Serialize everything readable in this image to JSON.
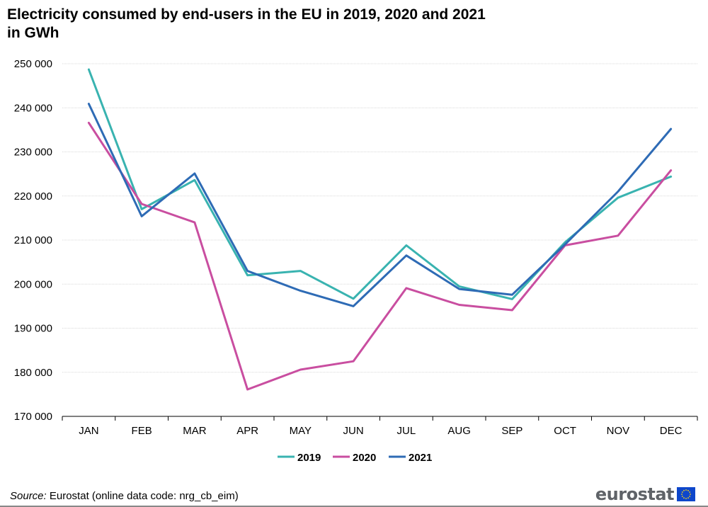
{
  "title_line1": "Electricity consumed by end-users in the EU in 2019, 2020 and 2021",
  "title_line2": "in GWh",
  "source_label": "Source:",
  "source_text": " Eurostat (online data code: nrg_cb_eim)",
  "logo_text": "eurostat",
  "chart_data": {
    "type": "line",
    "categories": [
      "JAN",
      "FEB",
      "MAR",
      "APR",
      "MAY",
      "JUN",
      "JUL",
      "AUG",
      "SEP",
      "OCT",
      "NOV",
      "DEC"
    ],
    "ylim": [
      170000,
      250000
    ],
    "yticks": [
      170000,
      180000,
      190000,
      200000,
      210000,
      220000,
      230000,
      240000,
      250000
    ],
    "ytick_labels": [
      "170 000",
      "180 000",
      "190 000",
      "200 000",
      "210 000",
      "220 000",
      "230 000",
      "240 000",
      "250 000"
    ],
    "grid": true,
    "legend": "bottom-center",
    "series": [
      {
        "name": "2019",
        "color": "#39b3b0",
        "values": [
          248700,
          217000,
          223600,
          202000,
          203000,
          196700,
          208800,
          199500,
          196600,
          209500,
          219600,
          224400
        ]
      },
      {
        "name": "2020",
        "color": "#c94ea0",
        "values": [
          236600,
          218200,
          214000,
          176100,
          180600,
          182500,
          199100,
          195300,
          194100,
          208800,
          211000,
          225800
        ]
      },
      {
        "name": "2021",
        "color": "#2e6bb5",
        "values": [
          240900,
          215400,
          225100,
          203000,
          198500,
          195000,
          206500,
          198900,
          197600,
          209000,
          221000,
          235200
        ]
      }
    ]
  }
}
